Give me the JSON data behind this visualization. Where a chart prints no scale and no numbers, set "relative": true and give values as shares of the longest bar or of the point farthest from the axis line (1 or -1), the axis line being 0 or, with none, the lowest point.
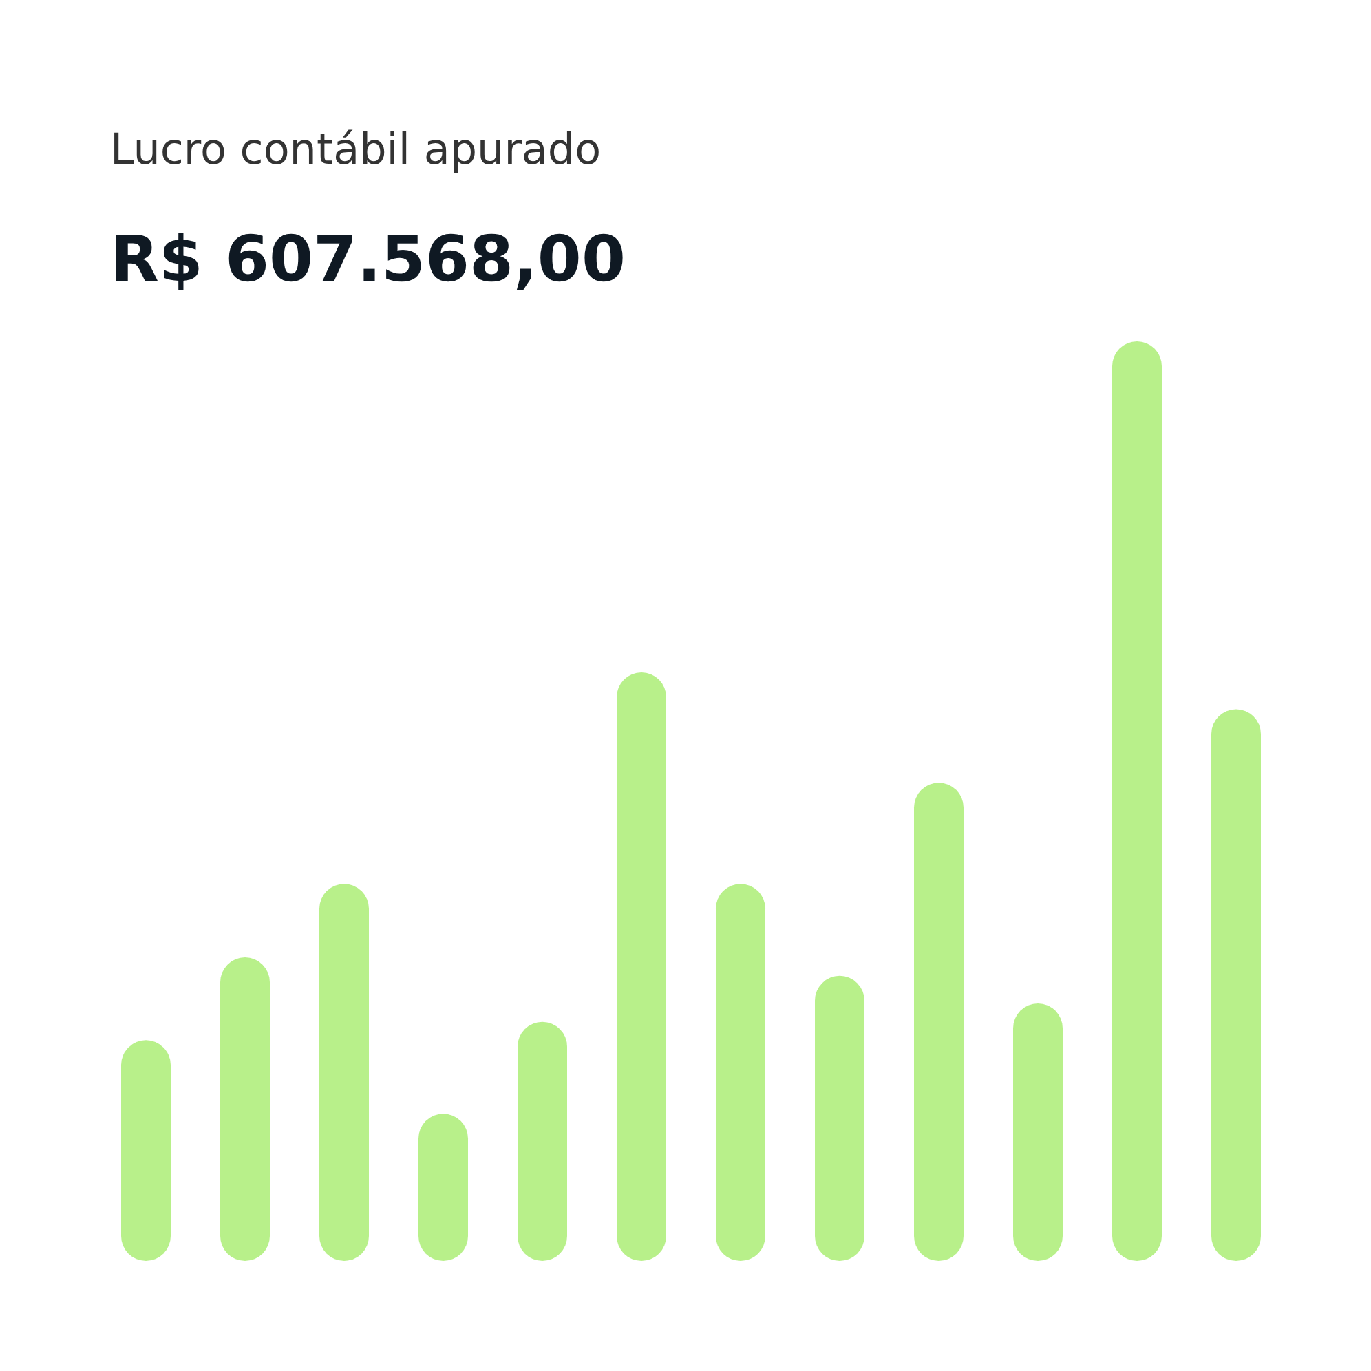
{
  "chart_data": {
    "type": "bar",
    "title": "Lucro contábil apurado",
    "subtitle": "R$ 607.568,00",
    "categories": [
      null,
      null,
      null,
      null,
      null,
      null,
      null,
      null,
      null,
      null,
      null,
      null
    ],
    "values": [
      0.24,
      0.33,
      0.41,
      0.16,
      0.26,
      0.64,
      0.41,
      0.31,
      0.52,
      0.28,
      1,
      0.6
    ],
    "color": "#b8f08a",
    "relative": true
  }
}
